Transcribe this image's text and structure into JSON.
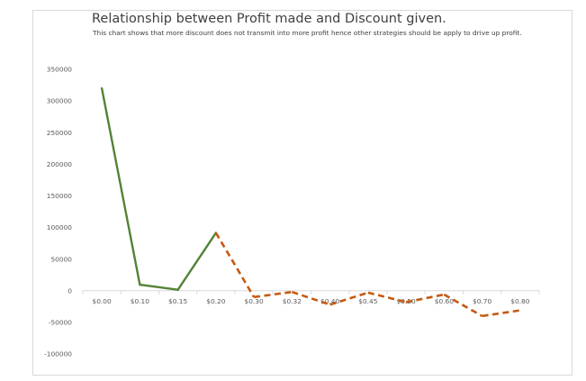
{
  "chart_data": {
    "type": "line",
    "title": "Relationship between Profit made and Discount given.",
    "subtitle": "This chart shows that more discount does not transmit into more profit hence other strategies should be apply to drive up profit.",
    "categories": [
      "$0.00",
      "$0.10",
      "$0.15",
      "$0.20",
      "$0.30",
      "$0.32",
      "$0.40",
      "$0.45",
      "$0.50",
      "$0.60",
      "$0.70",
      "$0.80"
    ],
    "series": [
      {
        "values": [
          320000,
          9500,
          1500,
          91500,
          -10000,
          -2000,
          -22000,
          -3000,
          -18000,
          -6000,
          -40000,
          -31000
        ]
      }
    ],
    "colors": {
      "positive": "#548235",
      "negative": "#c55a11"
    },
    "ylim": [
      -100000,
      350000
    ],
    "yticks": [
      -100000,
      -50000,
      0,
      50000,
      100000,
      150000,
      200000,
      250000,
      300000,
      350000
    ],
    "grid": false,
    "legend": "none",
    "xlabel": "",
    "ylabel": ""
  }
}
